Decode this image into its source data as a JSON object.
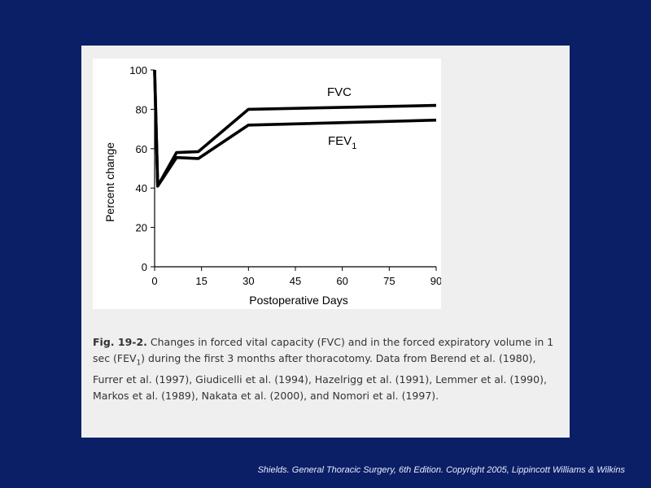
{
  "chart_data": {
    "type": "line",
    "xlabel": "Postoperative Days",
    "ylabel": "Percent change",
    "xlim": [
      0,
      90
    ],
    "ylim": [
      0,
      100
    ],
    "xticks": [
      "0",
      "15",
      "30",
      "45",
      "60",
      "75",
      "90"
    ],
    "yticks": [
      "0",
      "20",
      "40",
      "60",
      "80",
      "100"
    ],
    "grid": false,
    "series": [
      {
        "name": "FVC",
        "points": [
          [
            0,
            100
          ],
          [
            1,
            41
          ],
          [
            7,
            58
          ],
          [
            14,
            58.5
          ],
          [
            30,
            80
          ],
          [
            90,
            82
          ]
        ]
      },
      {
        "name": "FEV",
        "name_subscript": "1",
        "points": [
          [
            0,
            100
          ],
          [
            1,
            41
          ],
          [
            7,
            55.5
          ],
          [
            14,
            55
          ],
          [
            30,
            72
          ],
          [
            90,
            74.5
          ]
        ]
      }
    ]
  },
  "caption": {
    "lead": "Fig. 19-2.",
    "text_1": " Changes in forced vital capacity (FVC) and in the forced expiratory volume in 1 sec (FEV",
    "sub": "1",
    "text_2": ") during the first 3 months after thoracotomy. Data from Berend et al. (1980), Furrer et al. (1997), Giudicelli et al. (1994), Hazelrigg et al. (1991), Lemmer et al. (1990), Markos et al. (1989), Nakata et al. (2000), and Nomori et al. (1997)."
  },
  "credit": "Shields. General Thoracic Surgery, 6th Edition. Copyright  2005,  Lippincott Williams & Wilkins"
}
